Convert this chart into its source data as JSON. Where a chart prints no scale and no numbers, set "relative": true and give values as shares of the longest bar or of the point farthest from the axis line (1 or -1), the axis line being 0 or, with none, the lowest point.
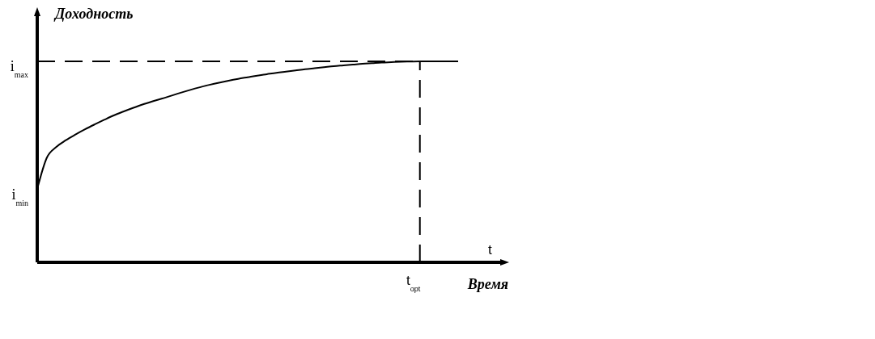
{
  "chart_data": {
    "type": "line",
    "ylabel": "Доходность",
    "xlabel": "Время",
    "relative": true,
    "categories": [
      null,
      null,
      null,
      null,
      null,
      null,
      null,
      null,
      null,
      null,
      null,
      null,
      null,
      null,
      null,
      null,
      null,
      null,
      null,
      null,
      null,
      null,
      null,
      null,
      null,
      null,
      null,
      null,
      null,
      null,
      null,
      null,
      null,
      null,
      null,
      null,
      null,
      null,
      null,
      null,
      null,
      null,
      null,
      null,
      null
    ],
    "values": [
      0.365,
      0.52,
      0.574,
      0.608,
      0.636,
      0.662,
      0.686,
      0.709,
      0.731,
      0.75,
      0.768,
      0.785,
      0.8,
      0.814,
      0.829,
      0.844,
      0.858,
      0.871,
      0.883,
      0.894,
      0.904,
      0.913,
      0.921,
      0.929,
      0.936,
      0.943,
      0.949,
      0.955,
      0.961,
      0.966,
      0.971,
      0.976,
      0.98,
      0.984,
      0.988,
      0.991,
      0.994,
      0.996,
      0.998,
      0.999,
      1,
      1,
      1,
      1,
      1
    ],
    "color": "#000000",
    "marker": "none",
    "line_style": "solid",
    "ref_lines": [
      {
        "axis": "y",
        "value": 1,
        "label": "i$_{max}$",
        "line_style": "dashed",
        "color": "#000000"
      }
    ],
    "annotations": [
      "i$_{min}$",
      "t",
      "t$_{opt}$"
    ]
  }
}
